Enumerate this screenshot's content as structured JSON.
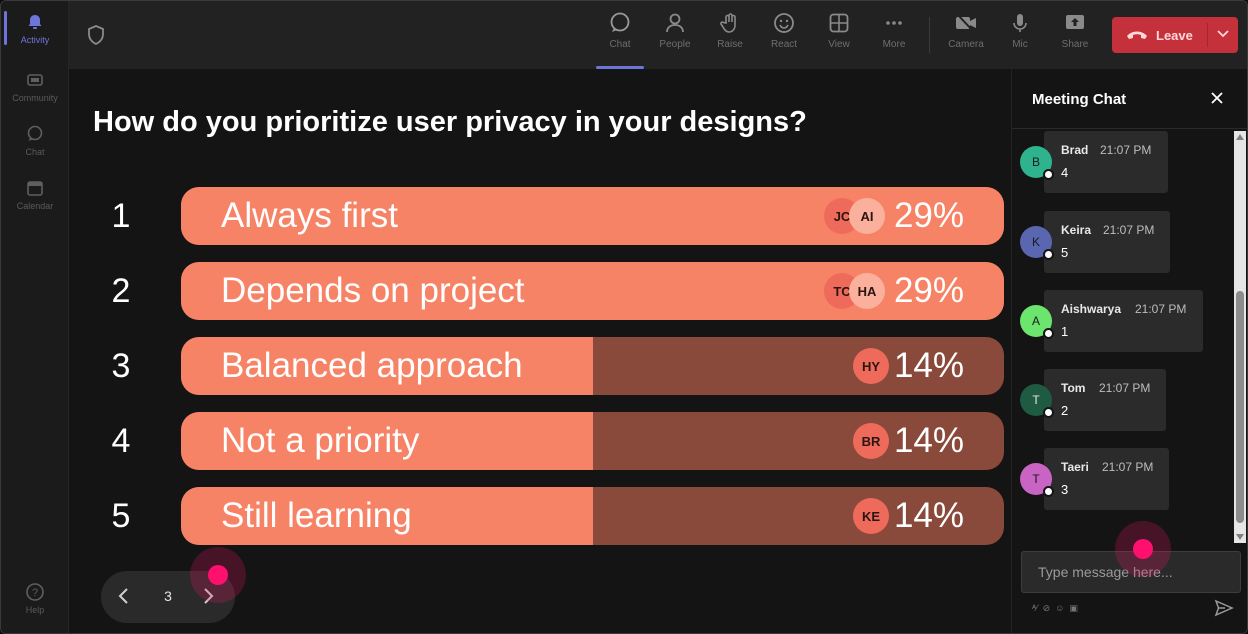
{
  "rail": {
    "items": [
      {
        "label": "Activity",
        "icon": "bell-icon"
      },
      {
        "label": "Community",
        "icon": "community-icon"
      },
      {
        "label": "Chat",
        "icon": "chat-icon"
      },
      {
        "label": "Calendar",
        "icon": "calendar-icon"
      }
    ],
    "help": "Help"
  },
  "toolbar": {
    "chat": "Chat",
    "people": "People",
    "raise": "Raise",
    "react": "React",
    "view": "View",
    "more": "More",
    "camera": "Camera",
    "mic": "Mic",
    "share": "Share",
    "leave": "Leave"
  },
  "poll": {
    "question": "How do you prioritize user privacy in your designs?",
    "options": [
      {
        "num": "1",
        "label": "Always first",
        "percent": "29%",
        "fill": 1.0,
        "avatars": [
          "JC",
          "AI"
        ]
      },
      {
        "num": "2",
        "label": "Depends on project",
        "percent": "29%",
        "fill": 1.0,
        "avatars": [
          "TC",
          "HA"
        ]
      },
      {
        "num": "3",
        "label": "Balanced approach",
        "percent": "14%",
        "fill": 0.5,
        "avatars": [
          "HY"
        ]
      },
      {
        "num": "4",
        "label": "Not a priority",
        "percent": "14%",
        "fill": 0.5,
        "avatars": [
          "BR"
        ]
      },
      {
        "num": "5",
        "label": "Still learning",
        "percent": "14%",
        "fill": 0.5,
        "avatars": [
          "KE"
        ]
      }
    ],
    "page": "3"
  },
  "chat": {
    "title": "Meeting Chat",
    "messages": [
      {
        "initial": "B",
        "name": "Brad",
        "time": "21:07 PM",
        "text": "4",
        "color": "#2fb38f"
      },
      {
        "initial": "K",
        "name": "Keira",
        "time": "21:07 PM",
        "text": "5",
        "color": "#5a66b0"
      },
      {
        "initial": "A",
        "name": "Aishwarya",
        "time": "21:07 PM",
        "text": "1",
        "color": "#6be56e"
      },
      {
        "initial": "T",
        "name": "Tom",
        "time": "21:07 PM",
        "text": "2",
        "color": "#1f5a43"
      },
      {
        "initial": "T",
        "name": "Taeri",
        "time": "21:07 PM",
        "text": "3",
        "color": "#c963c4"
      }
    ],
    "input_placeholder": "Type message here..."
  },
  "colors": {
    "accent": "#6e75d9",
    "leave": "#c4313b",
    "bar_fill": "#f78366",
    "bar_track": "#8a4a3b",
    "click_marker": "#ff0f6e"
  }
}
